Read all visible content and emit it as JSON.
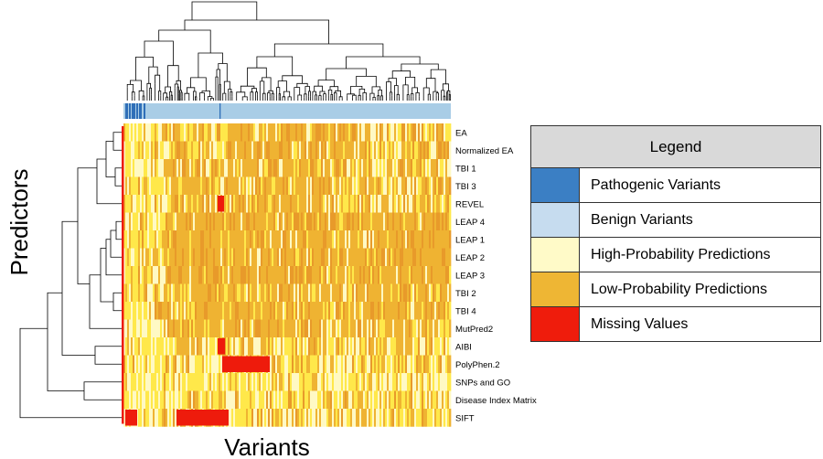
{
  "y_axis_label": "Predictors",
  "x_axis_label": "Variants",
  "rows": [
    "EA",
    "Normalized EA",
    "TBI 1",
    "TBI 3",
    "REVEL",
    "LEAP 4",
    "LEAP 1",
    "LEAP 2",
    "LEAP 3",
    "TBI 2",
    "TBI 4",
    "MutPred2",
    "AIBI",
    "PolyPhen.2",
    "SNPs and GO",
    "Disease Index Matrix",
    "SIFT"
  ],
  "legend": {
    "title": "Legend",
    "items": [
      {
        "label": "Pathogenic Variants",
        "color": "#3b7fc4"
      },
      {
        "label": "Benign Variants",
        "color": "#c6dcef"
      },
      {
        "label": "High-Probability Predictions",
        "color": "#fffac8"
      },
      {
        "label": "Low-Probability Predictions",
        "color": "#eeb634"
      },
      {
        "label": "Missing Values",
        "color": "#ef1c0c"
      }
    ]
  },
  "colors": {
    "pathogenic": "#3b7fc4",
    "benign": "#a9cde6",
    "high": "#fff9c4",
    "yellow": "#ffe84a",
    "low": "#efb332",
    "lowdark": "#e89a2a",
    "missing": "#ee1b0c"
  }
}
